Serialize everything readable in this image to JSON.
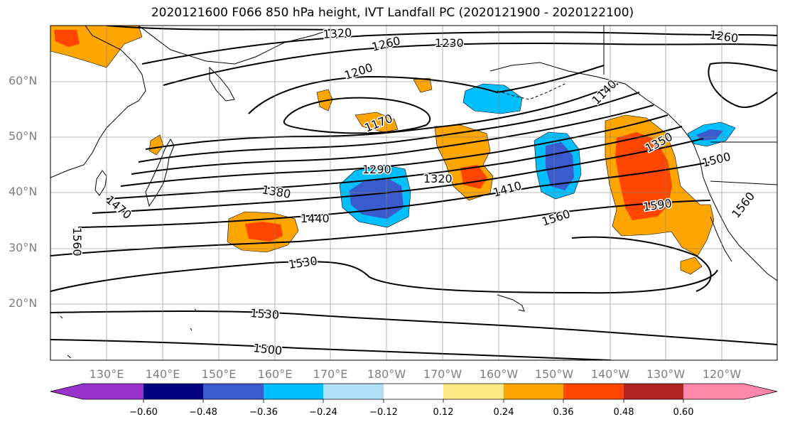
{
  "title": "2020121600 F066 850 hPa height, IVT Landfall PC (2020121900 - 2020122100)",
  "lat_labels": [
    "60°N",
    "50°N",
    "40°N",
    "30°N",
    "20°N"
  ],
  "lon_labels": [
    "130°E",
    "140°E",
    "150°E",
    "160°E",
    "170°E",
    "180°W",
    "170°W",
    "160°W",
    "150°W",
    "140°W",
    "130°W",
    "120°W"
  ],
  "colorbar": {
    "ticks": [
      "−0.60",
      "−0.48",
      "−0.36",
      "−0.24",
      "−0.12",
      "0.12",
      "0.24",
      "0.36",
      "0.48",
      "0.60"
    ],
    "colors": [
      "#9932CC",
      "#000080",
      "#3A5BCB",
      "#00BFFF",
      "#B0E0F8",
      "#FFFFFF",
      "#FFE984",
      "#FFA500",
      "#FF4500",
      "#B22222",
      "#FF88AA"
    ]
  },
  "contour_labels": [
    "1320",
    "1260",
    "1230",
    "1260",
    "1200",
    "1140",
    "1170",
    "1290",
    "1320",
    "1350",
    "1380",
    "1410",
    "1500",
    "1440",
    "1470",
    "1560",
    "1590",
    "1560",
    "1560",
    "1530",
    "1530",
    "1500"
  ]
}
